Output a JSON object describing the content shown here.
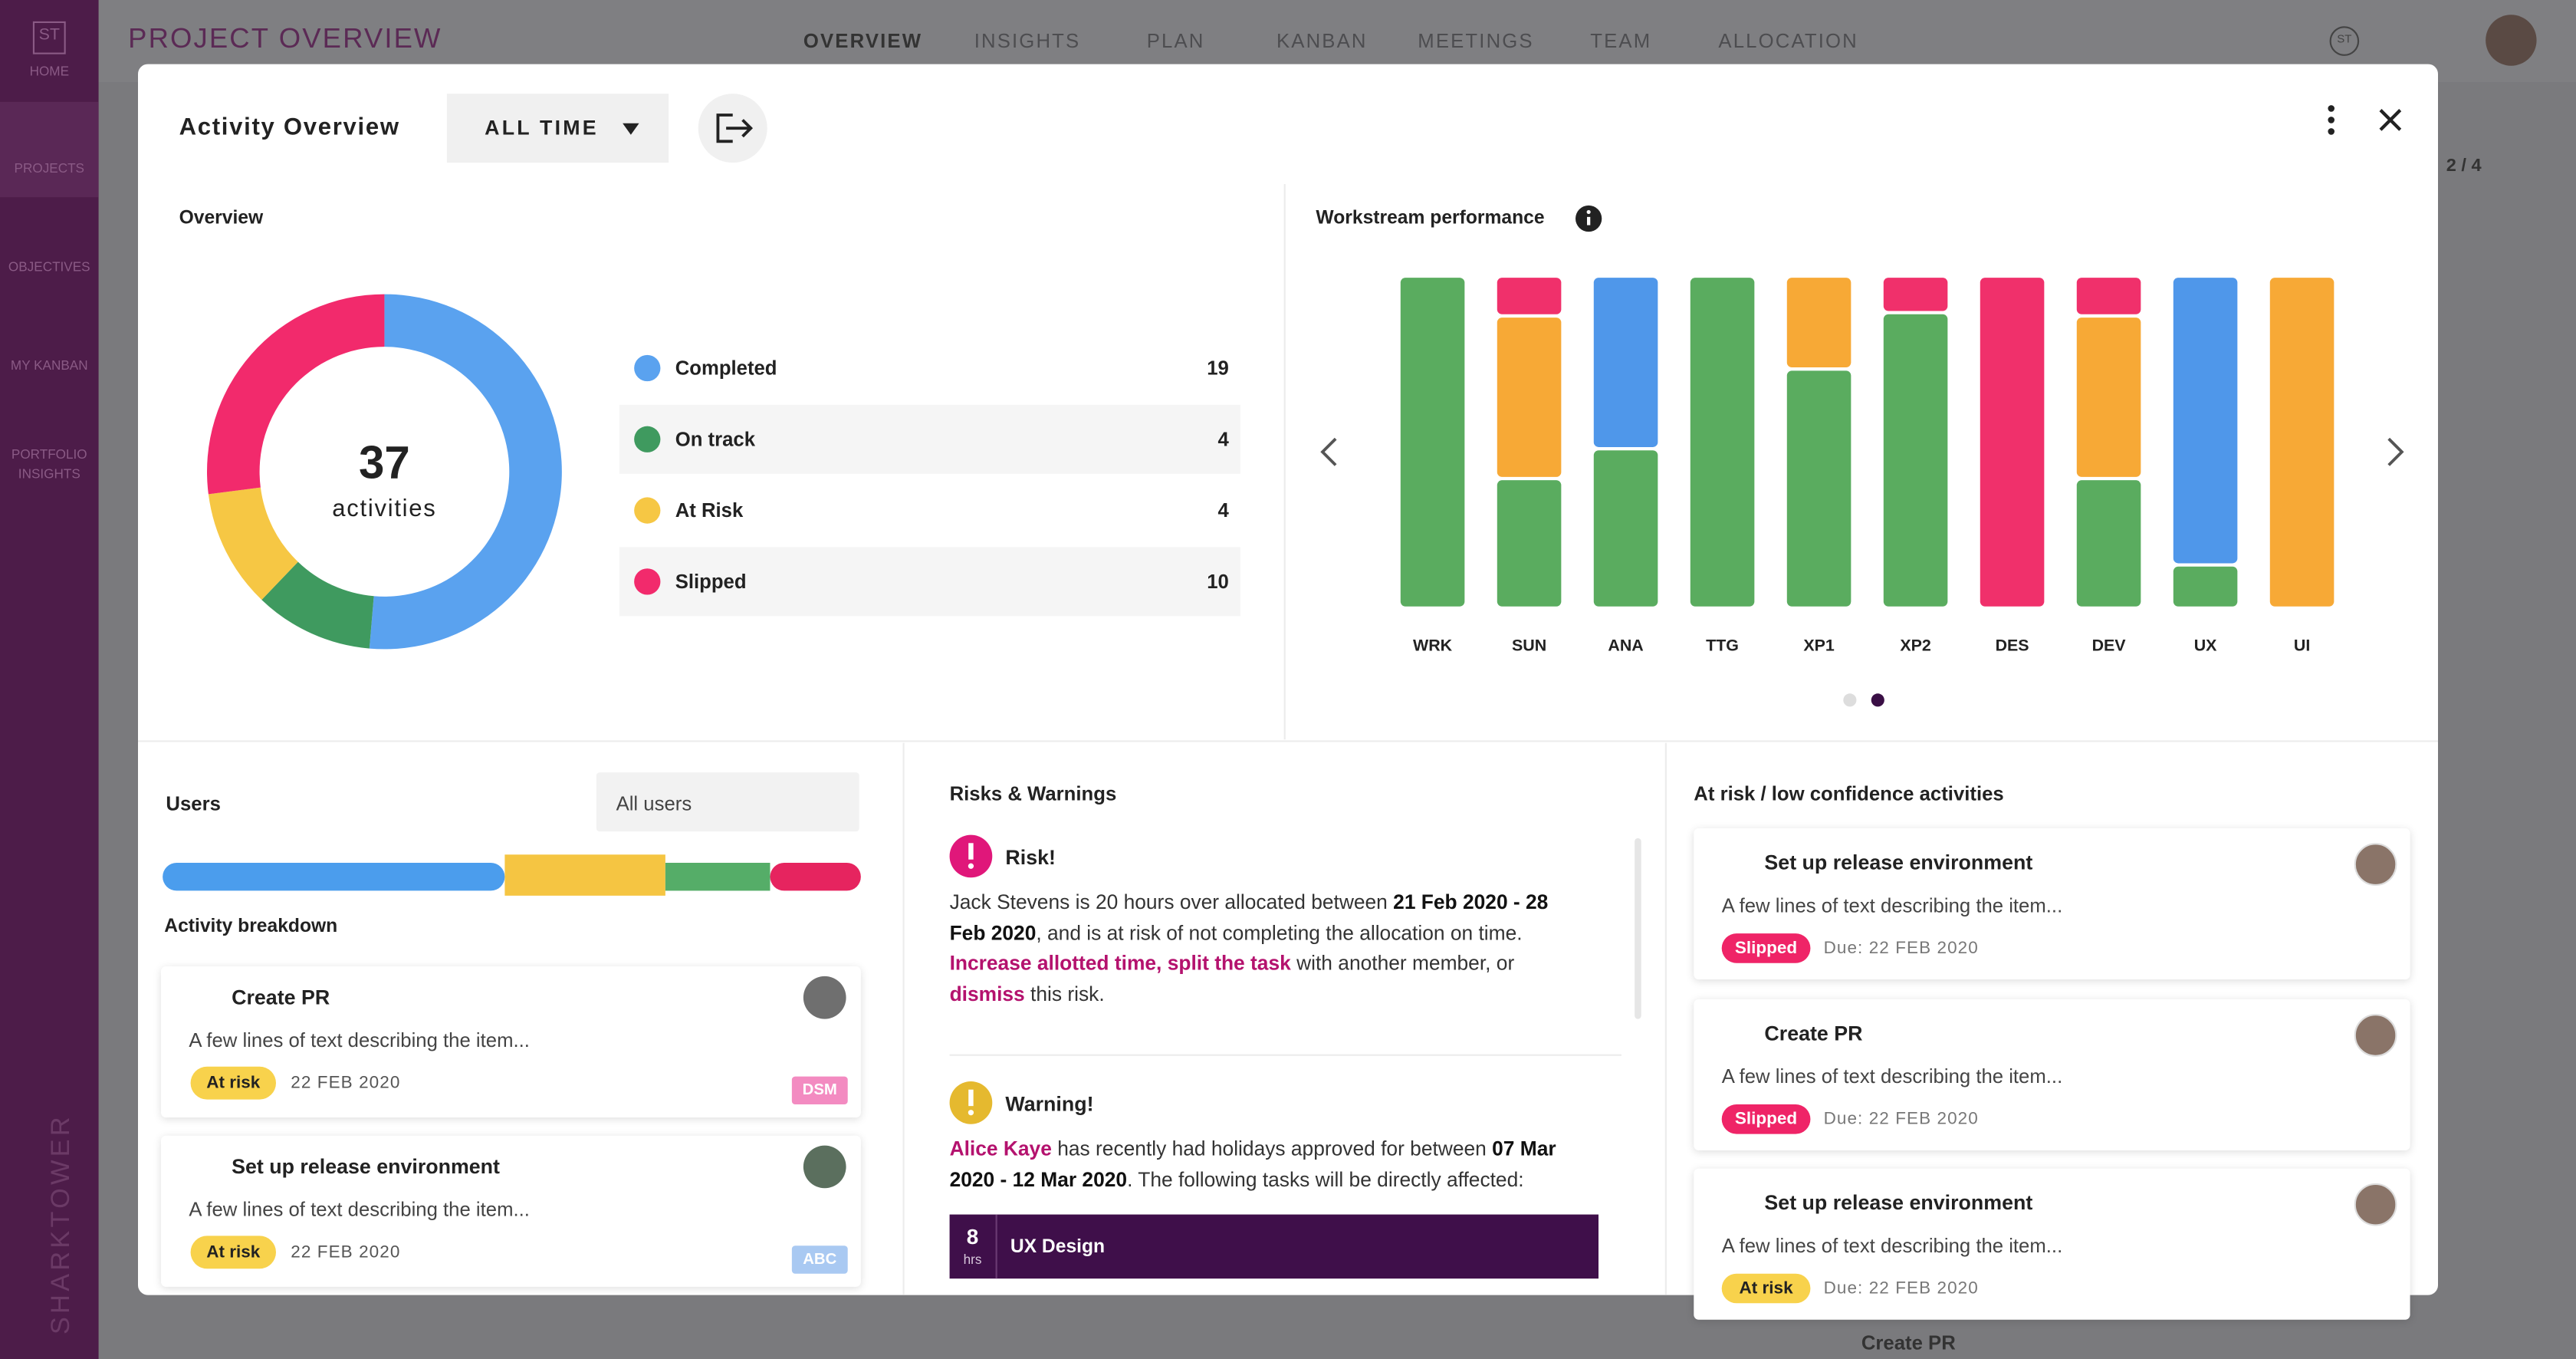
{
  "app": {
    "logo": "ST",
    "title": "PROJECT OVERVIEW",
    "nav": [
      "OVERVIEW",
      "INSIGHTS",
      "PLAN",
      "KANBAN",
      "MEETINGS",
      "TEAM",
      "ALLOCATION"
    ],
    "sidebar": [
      "HOME",
      "PROJECTS",
      "OBJECTIVES",
      "MY KANBAN",
      "PORTFOLIO INSIGHTS"
    ],
    "brand": "SHARKTOWER",
    "user_initials": "ST",
    "pager": "2 / 4",
    "background_item": "Create PR"
  },
  "modal": {
    "title": "Activity Overview",
    "filter": "ALL TIME"
  },
  "chart_data": [
    {
      "type": "pie",
      "title": "Overview",
      "center_value": 37,
      "center_label": "activities",
      "categories": [
        "Completed",
        "On track",
        "At Risk",
        "Slipped"
      ],
      "values": [
        19,
        4,
        4,
        10
      ],
      "colors": [
        "#5aa2ef",
        "#3f9a5f",
        "#f6c744",
        "#f22a6c"
      ]
    },
    {
      "type": "bar",
      "title": "Workstream performance",
      "stacked": true,
      "categories": [
        "WRK",
        "SUN",
        "ANA",
        "TTG",
        "XP1",
        "XP2",
        "DES",
        "DEV",
        "UX",
        "UI"
      ],
      "ylim": [
        0,
        100
      ],
      "series": [
        {
          "color": "#5aac5f",
          "values": [
            100,
            39,
            48,
            100,
            72,
            89,
            0,
            39,
            13,
            0
          ]
        },
        {
          "color": "#f7a936",
          "values": [
            0,
            49,
            0,
            0,
            28,
            0,
            0,
            49,
            0,
            100
          ]
        },
        {
          "color": "#4f97ea",
          "values": [
            0,
            0,
            52,
            0,
            0,
            0,
            0,
            0,
            87,
            0
          ]
        },
        {
          "color": "#f0306b",
          "values": [
            0,
            12,
            0,
            0,
            0,
            11,
            100,
            12,
            0,
            0
          ]
        }
      ]
    }
  ],
  "users": {
    "heading": "Users",
    "filter": "All users",
    "breakdown": {
      "values": [
        49,
        23,
        15,
        13
      ],
      "colors": [
        "#4b9ded",
        "#f5c542",
        "#55ad68",
        "#e6245f"
      ]
    },
    "breakdown_heading": "Activity breakdown",
    "items": [
      {
        "title": "Create PR",
        "description": "A few lines of text describing the item...",
        "status": "At risk",
        "date": "22 FEB 2020",
        "tag": "DSM"
      },
      {
        "title": "Set up release environment",
        "description": "A few lines of text describing the item...",
        "status": "At risk",
        "date": "22 FEB 2020",
        "tag": "ABC"
      }
    ]
  },
  "risks": {
    "heading": "Risks & Warnings",
    "items": [
      {
        "title": "Risk!",
        "parts": [
          "Jack Stevens is 20 hours over allocated between ",
          "21 Feb 2020 - 28 Feb 2020",
          ", and is at risk of not completing the allocation on time. ",
          "Increase allotted time",
          ", ",
          "split the task",
          " with another member, or ",
          "dismiss",
          " this risk."
        ]
      },
      {
        "title": "Warning!",
        "parts": [
          "Alice Kaye",
          " has recently had holidays approved for between ",
          "07 Mar 2020 - 12 Mar 2020",
          ". The following tasks will be directly affected:"
        ],
        "task": {
          "hours": 8,
          "unit": "hrs",
          "name": "UX Design"
        }
      }
    ]
  },
  "at_risk": {
    "heading": "At risk / low confidence activities",
    "items": [
      {
        "title": "Set up release environment",
        "description": "A few lines of text describing the item...",
        "status": "Slipped",
        "due": "Due: 22 FEB 2020"
      },
      {
        "title": "Create PR",
        "description": "A few lines of text describing the item...",
        "status": "Slipped",
        "due": "Due: 22 FEB 2020"
      },
      {
        "title": "Set up release environment",
        "description": "A few lines of text describing the item...",
        "status": "At risk",
        "due": "Due: 22 FEB 2020"
      }
    ]
  }
}
